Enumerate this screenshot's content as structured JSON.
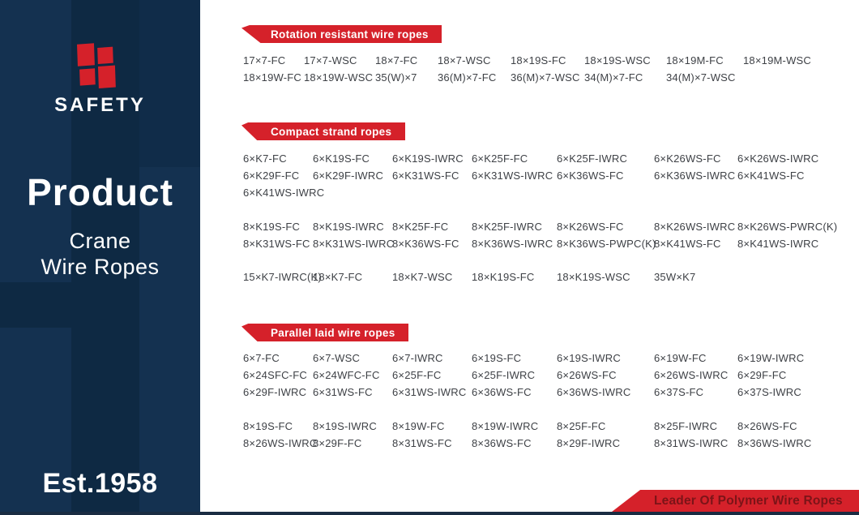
{
  "sidebar": {
    "brand": "SAFETY",
    "logo_icon": "safety-s-blocks-icon",
    "heading": "Product",
    "subheading_line1": "Crane",
    "subheading_line2": "Wire Ropes",
    "established": "Est.1958"
  },
  "sections": [
    {
      "title": "Rotation resistant wire ropes",
      "blocks": [
        [
          [
            "17×7-FC",
            "17×7-WSC",
            "18×7-FC",
            "18×7-WSC",
            "18×19S-FC",
            "18×19S-WSC",
            "18×19M-FC",
            "18×19M-WSC"
          ],
          [
            "18×19W-FC",
            "18×19W-WSC",
            "35(W)×7",
            "36(M)×7-FC",
            "36(M)×7-WSC",
            "34(M)×7-FC",
            "34(M)×7-WSC"
          ]
        ]
      ]
    },
    {
      "title": "Compact strand ropes",
      "blocks": [
        [
          [
            "6×K7-FC",
            "6×K19S-FC",
            "6×K19S-IWRC",
            "6×K25F-FC",
            "6×K25F-IWRC",
            "6×K26WS-FC",
            "6×K26WS-IWRC"
          ],
          [
            "6×K29F-FC",
            "6×K29F-IWRC",
            "6×K31WS-FC",
            "6×K31WS-IWRC",
            "6×K36WS-FC",
            "6×K36WS-IWRC",
            "6×K41WS-FC"
          ],
          [
            "6×K41WS-IWRC"
          ]
        ],
        [
          [
            "8×K19S-FC",
            "8×K19S-IWRC",
            "8×K25F-FC",
            "8×K25F-IWRC",
            "8×K26WS-FC",
            "8×K26WS-IWRC",
            "8×K26WS-PWRC(K)"
          ],
          [
            "8×K31WS-FC",
            "8×K31WS-IWRC",
            "8×K36WS-FC",
            "8×K36WS-IWRC",
            "8×K36WS-PWPC(K)",
            "8×K41WS-FC",
            "8×K41WS-IWRC"
          ]
        ],
        [
          [
            "15×K7-IWRC(K)",
            "18×K7-FC",
            "18×K7-WSC",
            "18×K19S-FC",
            "18×K19S-WSC",
            "35W×K7"
          ]
        ]
      ]
    },
    {
      "title": "Parallel laid wire ropes",
      "blocks": [
        [
          [
            "6×7-FC",
            "6×7-WSC",
            "6×7-IWRC",
            "6×19S-FC",
            "6×19S-IWRC",
            "6×19W-FC",
            "6×19W-IWRC"
          ],
          [
            "6×24SFC-FC",
            "6×24WFC-FC",
            "6×25F-FC",
            "6×25F-IWRC",
            "6×26WS-FC",
            "6×26WS-IWRC",
            "6×29F-FC"
          ],
          [
            "6×29F-IWRC",
            "6×31WS-FC",
            "6×31WS-IWRC",
            "6×36WS-FC",
            "6×36WS-IWRC",
            "6×37S-FC",
            "6×37S-IWRC"
          ]
        ],
        [
          [
            "8×19S-FC",
            "8×19S-IWRC",
            "8×19W-FC",
            "8×19W-IWRC",
            "8×25F-FC",
            "8×25F-IWRC",
            "8×26WS-FC"
          ],
          [
            "8×26WS-IWRC",
            "8×29F-FC",
            "8×31WS-FC",
            "8×36WS-FC",
            "8×29F-IWRC",
            "8×31WS-IWRC",
            "8×36WS-IWRC"
          ]
        ]
      ]
    }
  ],
  "footer": {
    "tagline": "Leader Of Polymer Wire Ropes"
  },
  "colors": {
    "accent_red": "#d5212a",
    "sidebar_navy": "#143150",
    "sidebar_navy_dark": "#0e2943",
    "body_text": "#3e4146",
    "footer_text_maroon": "#7c1418",
    "bottom_strip": "#1a2c42"
  }
}
